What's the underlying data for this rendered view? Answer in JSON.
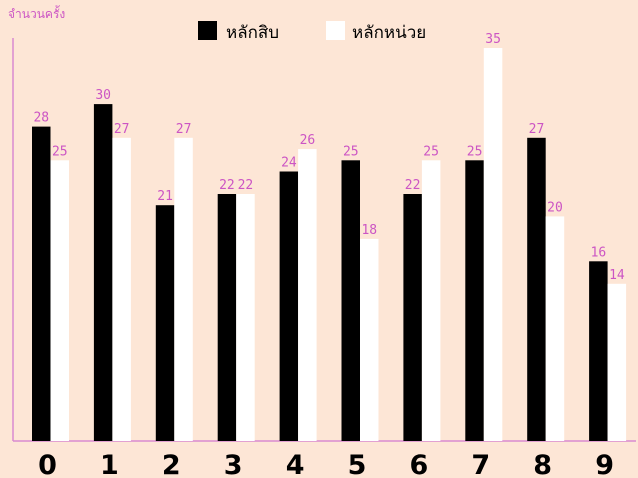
{
  "chart_data": {
    "type": "bar",
    "ylabel": "จำนวนครั้ง",
    "xlabel": "",
    "categories": [
      "0",
      "1",
      "2",
      "3",
      "4",
      "5",
      "6",
      "7",
      "8",
      "9"
    ],
    "series": [
      {
        "name": "หลักสิบ",
        "values": [
          28,
          30,
          21,
          22,
          24,
          25,
          22,
          25,
          27,
          16
        ],
        "color": "#000000"
      },
      {
        "name": "หลักหน่วย",
        "values": [
          25,
          27,
          27,
          22,
          26,
          18,
          25,
          35,
          20,
          14
        ],
        "color": "#ffffff"
      }
    ],
    "ylim": [
      0,
      35
    ],
    "legend": "top-center",
    "grid": false,
    "colors": {
      "background": "#fde6d6",
      "axis": "#d98ad0",
      "labels": "#cc55c4",
      "categories": "#000000"
    }
  }
}
